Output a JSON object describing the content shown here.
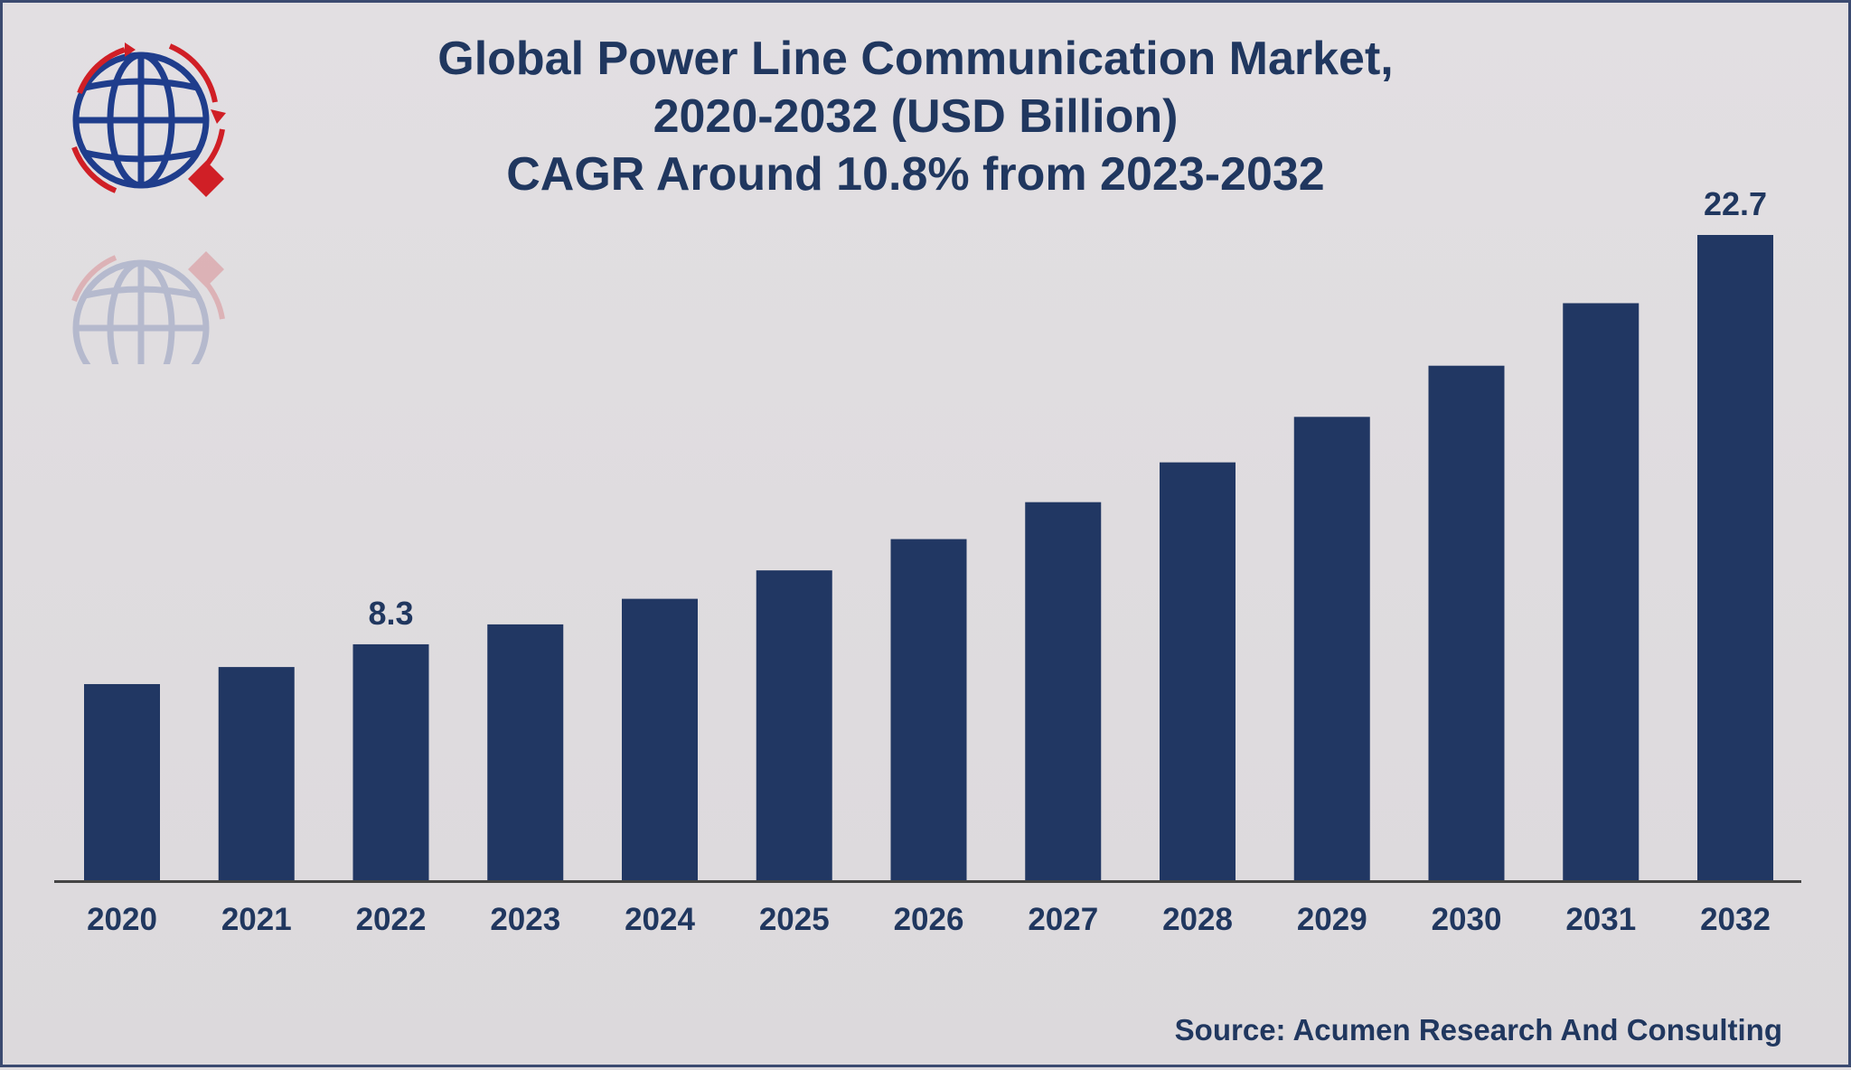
{
  "title": {
    "line1": "Global Power Line Communication Market,",
    "line2": "2020-2032 (USD Billion)",
    "line3": "CAGR Around 10.8% from 2023-2032"
  },
  "source": "Source: Acumen Research And Consulting",
  "colors": {
    "bar": "#213763",
    "text": "#20375f",
    "logo_blue": "#1f3d8c",
    "logo_red": "#d01f26",
    "background": "#dfdcdf"
  },
  "logo": {
    "icon": "globe-arrows-logo"
  },
  "chart_data": {
    "type": "bar",
    "title": "Global Power Line Communication Market, 2020-2032 (USD Billion) CAGR Around 10.8% from 2023-2032",
    "categories": [
      "2020",
      "2021",
      "2022",
      "2023",
      "2024",
      "2025",
      "2026",
      "2027",
      "2028",
      "2029",
      "2030",
      "2031",
      "2032"
    ],
    "values": [
      6.9,
      7.5,
      8.3,
      9.0,
      9.9,
      10.9,
      12.0,
      13.3,
      14.7,
      16.3,
      18.1,
      20.3,
      22.7
    ],
    "data_labels": [
      {
        "category": "2022",
        "label": "8.3"
      },
      {
        "category": "2032",
        "label": "22.7"
      }
    ],
    "xlabel": "",
    "ylabel": "",
    "ylim": [
      0,
      22.7
    ],
    "grid": false,
    "legend": "none"
  }
}
